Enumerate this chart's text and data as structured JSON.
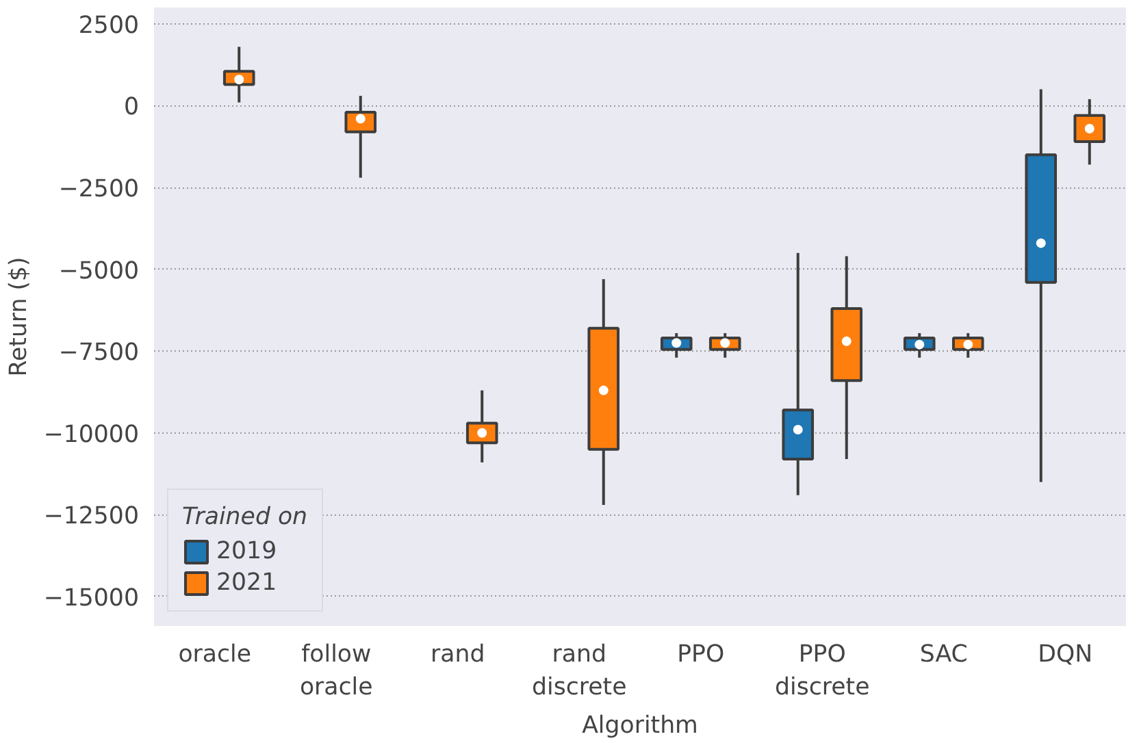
{
  "chart_data": {
    "type": "box",
    "xlabel": "Algorithm",
    "ylabel": "Return ($)",
    "categories": [
      "oracle",
      "follow\noracle",
      "rand",
      "rand\ndiscrete",
      "PPO",
      "PPO\ndiscrete",
      "SAC",
      "DQN"
    ],
    "ylim": [
      -15900,
      3000
    ],
    "yticks": [
      2500,
      0,
      {
        "value": -2500,
        "label": "−2500"
      },
      {
        "value": -5000,
        "label": "−5000"
      },
      {
        "value": -7500,
        "label": "−7500"
      },
      {
        "value": -10000,
        "label": "−10000"
      },
      {
        "value": -12500,
        "label": "−12500"
      },
      {
        "value": -15000,
        "label": "−15000"
      }
    ],
    "grid": "y",
    "legend": "bottom left",
    "legend_title": "Trained on",
    "series": [
      {
        "name": "2019",
        "color": "#1f77b4",
        "boxes": [
          null,
          null,
          null,
          null,
          {
            "low": -7700,
            "q1": -7450,
            "median": -7250,
            "q3": -7100,
            "high": -6950
          },
          {
            "low": -11900,
            "q1": -10800,
            "median": -9900,
            "q3": -9300,
            "high": -4500
          },
          {
            "low": -7700,
            "q1": -7450,
            "median": -7300,
            "q3": -7100,
            "high": -6950
          },
          {
            "low": -11500,
            "q1": -5400,
            "median": -4200,
            "q3": -1500,
            "high": 500
          }
        ]
      },
      {
        "name": "2021",
        "color": "#ff7f0e",
        "boxes": [
          {
            "low": 100,
            "q1": 650,
            "median": 800,
            "q3": 1050,
            "high": 1800
          },
          {
            "low": -2200,
            "q1": -800,
            "median": -400,
            "q3": -200,
            "high": 300
          },
          {
            "low": -10900,
            "q1": -10300,
            "median": -10000,
            "q3": -9700,
            "high": -8700
          },
          {
            "low": -12200,
            "q1": -10500,
            "median": -8700,
            "q3": -6800,
            "high": -5300
          },
          {
            "low": -7700,
            "q1": -7450,
            "median": -7250,
            "q3": -7100,
            "high": -6950
          },
          {
            "low": -10800,
            "q1": -8400,
            "median": -7200,
            "q3": -6200,
            "high": -4600
          },
          {
            "low": -7700,
            "q1": -7450,
            "median": -7300,
            "q3": -7100,
            "high": -6950
          },
          {
            "low": -1800,
            "q1": -1100,
            "median": -700,
            "q3": -300,
            "high": 200
          }
        ]
      }
    ]
  }
}
